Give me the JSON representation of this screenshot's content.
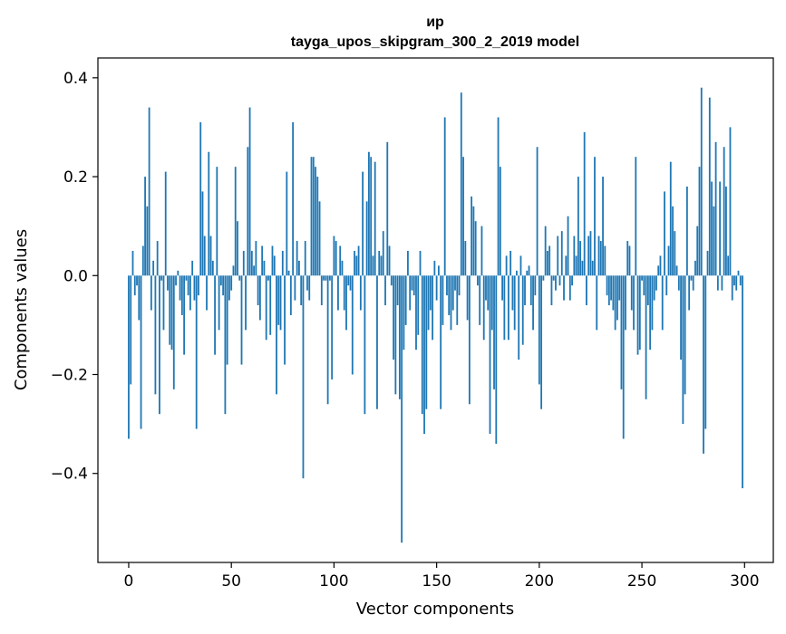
{
  "chart_data": {
    "type": "bar",
    "title_line1": "ир",
    "title_line2": "tayga_upos_skipgram_300_2_2019 model",
    "xlabel": "Vector components",
    "ylabel": "Components values",
    "xlim": [
      -15,
      314
    ],
    "ylim": [
      -0.58,
      0.44
    ],
    "xticks": [
      0,
      50,
      100,
      150,
      200,
      250,
      300
    ],
    "xtick_labels": [
      "0",
      "50",
      "100",
      "150",
      "200",
      "250",
      "300"
    ],
    "yticks": [
      -0.4,
      -0.2,
      0.0,
      0.2,
      0.4
    ],
    "ytick_labels": [
      "−0.4",
      "−0.2",
      "0.0",
      "0.2",
      "0.4"
    ],
    "grid": false,
    "bar_color": "#1f77b4",
    "values": [
      -0.33,
      -0.22,
      0.05,
      -0.04,
      -0.02,
      -0.09,
      -0.31,
      0.06,
      0.2,
      0.14,
      0.34,
      -0.07,
      0.03,
      -0.24,
      0.07,
      -0.28,
      -0.01,
      -0.11,
      0.21,
      -0.03,
      -0.14,
      -0.15,
      -0.23,
      -0.02,
      0.01,
      -0.05,
      -0.08,
      -0.16,
      -0.01,
      -0.04,
      -0.07,
      0.03,
      -0.05,
      -0.31,
      -0.04,
      0.31,
      0.17,
      0.08,
      -0.07,
      0.25,
      0.08,
      0.03,
      -0.16,
      0.22,
      -0.11,
      -0.02,
      -0.04,
      -0.28,
      -0.18,
      -0.05,
      -0.03,
      0.02,
      0.22,
      0.11,
      -0.01,
      -0.18,
      0.05,
      -0.11,
      0.26,
      0.34,
      0.05,
      0.02,
      0.07,
      -0.06,
      -0.09,
      0.06,
      0.03,
      -0.13,
      -0.01,
      -0.12,
      0.06,
      0.04,
      -0.24,
      -0.1,
      -0.11,
      0.05,
      -0.18,
      0.21,
      0.01,
      -0.08,
      0.31,
      -0.05,
      0.07,
      0.03,
      -0.06,
      -0.41,
      0.07,
      -0.03,
      -0.05,
      0.24,
      0.24,
      0.22,
      0.2,
      0.15,
      -0.06,
      -0.01,
      -0.01,
      -0.26,
      -0.01,
      -0.21,
      0.08,
      0.07,
      -0.07,
      0.06,
      0.03,
      -0.07,
      -0.11,
      -0.02,
      -0.03,
      -0.2,
      0.05,
      0.04,
      0.06,
      -0.07,
      0.21,
      -0.28,
      0.15,
      0.25,
      0.24,
      0.04,
      0.23,
      -0.27,
      0.05,
      0.04,
      0.09,
      -0.06,
      0.27,
      0.06,
      -0.02,
      -0.17,
      -0.24,
      -0.06,
      -0.25,
      -0.54,
      -0.15,
      -0.1,
      0.05,
      -0.07,
      -0.03,
      -0.04,
      -0.15,
      -0.12,
      0.05,
      -0.28,
      -0.32,
      -0.27,
      -0.11,
      -0.07,
      -0.13,
      0.03,
      -0.05,
      0.02,
      -0.27,
      -0.1,
      0.32,
      -0.04,
      -0.08,
      -0.11,
      -0.07,
      -0.03,
      -0.1,
      -0.04,
      0.37,
      0.24,
      0.07,
      -0.09,
      -0.26,
      0.16,
      0.14,
      0.11,
      -0.02,
      -0.1,
      0.1,
      -0.13,
      -0.05,
      -0.07,
      -0.32,
      -0.11,
      -0.23,
      -0.34,
      0.32,
      0.22,
      -0.05,
      -0.13,
      0.04,
      -0.13,
      0.05,
      -0.07,
      -0.11,
      0.01,
      -0.17,
      0.04,
      -0.14,
      -0.06,
      0.01,
      0.02,
      -0.06,
      -0.11,
      -0.04,
      0.26,
      -0.22,
      -0.27,
      -0.01,
      0.1,
      0.05,
      0.06,
      -0.06,
      -0.01,
      -0.03,
      0.08,
      -0.02,
      0.09,
      -0.05,
      0.04,
      0.12,
      -0.05,
      -0.02,
      0.08,
      0.04,
      0.2,
      0.07,
      0.03,
      0.29,
      -0.06,
      0.08,
      0.09,
      0.03,
      0.24,
      -0.11,
      0.08,
      0.07,
      0.2,
      0.06,
      -0.04,
      -0.06,
      -0.05,
      -0.07,
      -0.11,
      -0.09,
      -0.05,
      -0.23,
      -0.33,
      -0.11,
      0.07,
      0.06,
      -0.07,
      -0.11,
      0.24,
      -0.16,
      -0.15,
      -0.01,
      -0.04,
      -0.25,
      -0.06,
      -0.15,
      -0.11,
      -0.05,
      -0.03,
      0.02,
      0.04,
      -0.11,
      0.17,
      -0.04,
      0.06,
      0.23,
      0.14,
      0.09,
      0.02,
      -0.03,
      -0.17,
      -0.3,
      -0.24,
      0.18,
      -0.07,
      -0.01,
      -0.03,
      0.03,
      0.1,
      0.22,
      0.38,
      -0.36,
      -0.31,
      0.05,
      0.36,
      0.19,
      0.14,
      0.27,
      -0.03,
      0.19,
      -0.03,
      0.26,
      0.18,
      0.04,
      0.3,
      -0.05,
      -0.02,
      -0.03,
      0.01,
      -0.02,
      -0.43
    ]
  }
}
